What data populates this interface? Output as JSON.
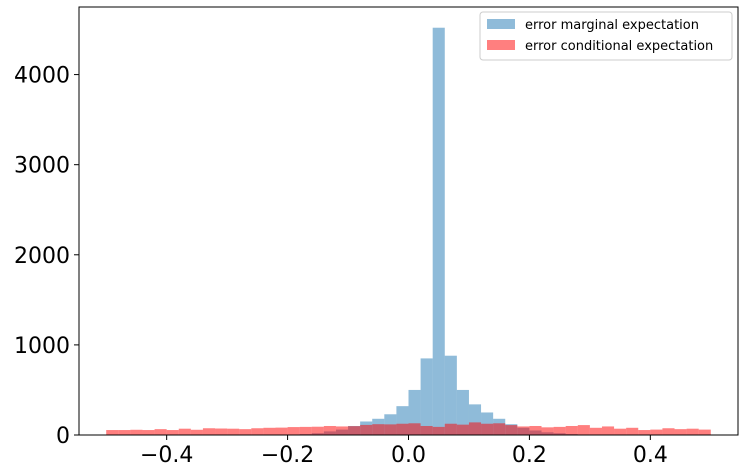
{
  "chart_data": {
    "type": "histogram",
    "title": "",
    "xlabel": "",
    "ylabel": "",
    "xlim": [
      -0.545,
      0.545
    ],
    "ylim": [
      0,
      4750
    ],
    "x_ticks": [
      -0.4,
      -0.2,
      0.0,
      0.2,
      0.4
    ],
    "x_tick_labels": [
      "−0.4",
      "−0.2",
      "0.0",
      "0.2",
      "0.4"
    ],
    "y_ticks": [
      0,
      1000,
      2000,
      3000,
      4000
    ],
    "y_tick_labels": [
      "0",
      "1000",
      "2000",
      "3000",
      "4000"
    ],
    "bin_range": [
      -0.5,
      0.5
    ],
    "bin_count": 50,
    "legend_position": "top-right",
    "series": [
      {
        "name": "error marginal expectation",
        "color": "#1f77b4",
        "alpha": 0.5,
        "counts": [
          0,
          0,
          0,
          0,
          0,
          0,
          0,
          0,
          0,
          0,
          0,
          0,
          0,
          0,
          2,
          5,
          10,
          20,
          40,
          60,
          100,
          150,
          180,
          230,
          320,
          500,
          850,
          4520,
          880,
          500,
          340,
          250,
          180,
          120,
          80,
          50,
          30,
          20,
          10,
          5,
          0,
          0,
          0,
          0,
          0,
          0,
          0,
          0,
          0,
          0
        ]
      },
      {
        "name": "error conditional expectation",
        "color": "#ff0000",
        "alpha": 0.5,
        "counts": [
          55,
          55,
          58,
          55,
          65,
          55,
          70,
          58,
          75,
          72,
          70,
          65,
          75,
          80,
          82,
          88,
          90,
          92,
          100,
          95,
          98,
          112,
          120,
          118,
          125,
          130,
          100,
          90,
          125,
          115,
          140,
          125,
          130,
          110,
          95,
          100,
          85,
          90,
          100,
          110,
          80,
          95,
          70,
          80,
          55,
          60,
          75,
          65,
          70,
          60
        ]
      }
    ]
  }
}
